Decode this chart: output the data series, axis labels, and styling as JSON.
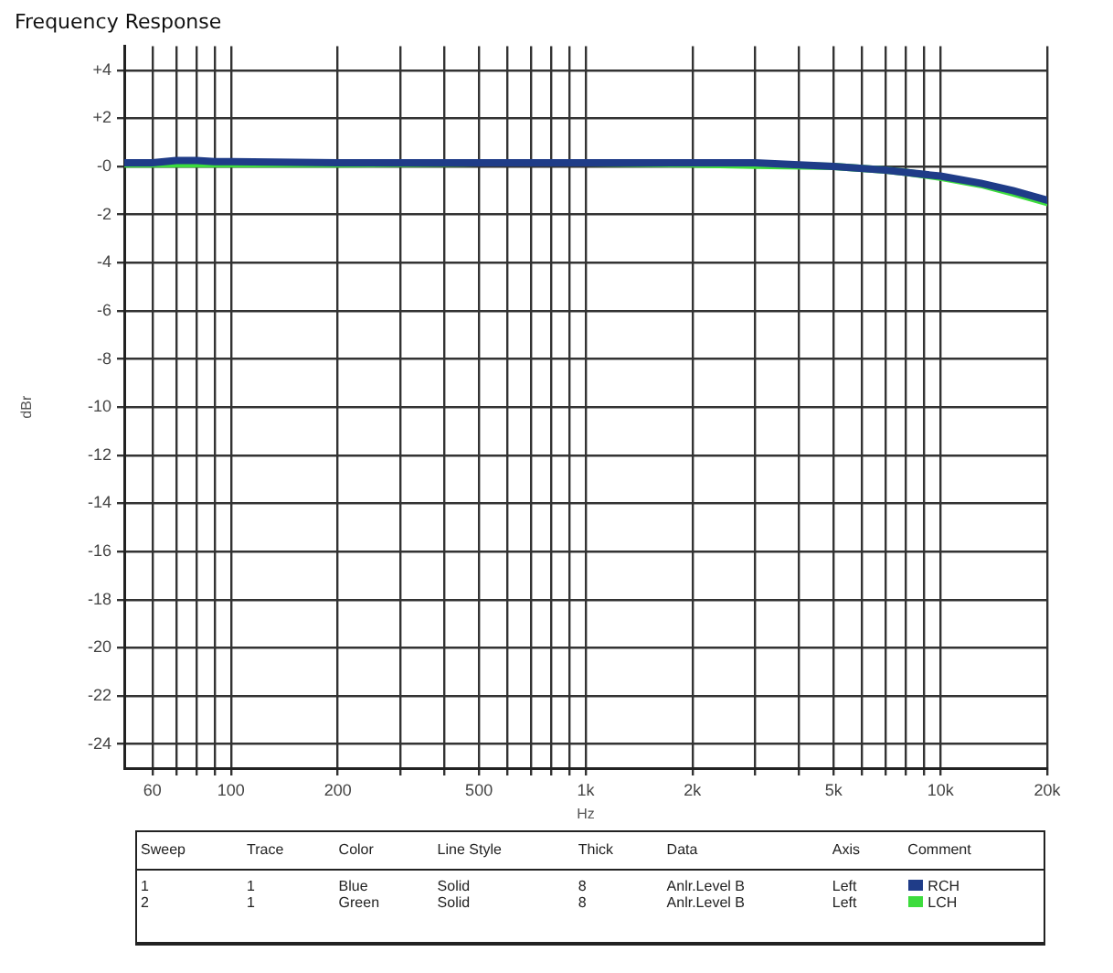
{
  "chart_data": {
    "type": "line",
    "title": "Frequency Response",
    "xlabel": "Hz",
    "ylabel": "dBr",
    "log": "x",
    "x": [
      50,
      60,
      70,
      80,
      90,
      100,
      200,
      500,
      1000,
      2000,
      3000,
      5000,
      7000,
      8000,
      10000,
      13000,
      16000,
      20000
    ],
    "series": [
      {
        "name": "RCH",
        "color": "#1f3c88",
        "values": [
          0.15,
          0.15,
          0.25,
          0.25,
          0.2,
          0.2,
          0.15,
          0.15,
          0.15,
          0.15,
          0.15,
          0,
          -0.15,
          -0.25,
          -0.4,
          -0.7,
          -1.0,
          -1.4
        ]
      },
      {
        "name": "LCH",
        "color": "#3ddc3d",
        "values": [
          0.1,
          0.1,
          0.1,
          0.1,
          0.1,
          0.1,
          0.1,
          0.15,
          0.15,
          0.1,
          0.05,
          0,
          -0.15,
          -0.25,
          -0.45,
          -0.75,
          -1.1,
          -1.5
        ]
      }
    ],
    "xlim": [
      50,
      20000
    ],
    "xticks": [
      60,
      {
        "value": 70,
        "label": null
      },
      {
        "value": 80,
        "label": null
      },
      {
        "value": 90,
        "label": null
      },
      100,
      200,
      {
        "value": 300,
        "label": null
      },
      {
        "value": 400,
        "label": null
      },
      500,
      {
        "value": 600,
        "label": null
      },
      {
        "value": 700,
        "label": null
      },
      {
        "value": 800,
        "label": null
      },
      {
        "value": 900,
        "label": null
      },
      {
        "value": 1000,
        "label": "1k"
      },
      {
        "value": 2000,
        "label": "2k"
      },
      {
        "value": 3000,
        "label": null
      },
      {
        "value": 4000,
        "label": null
      },
      {
        "value": 5000,
        "label": "5k"
      },
      {
        "value": 6000,
        "label": null
      },
      {
        "value": 7000,
        "label": null
      },
      {
        "value": 8000,
        "label": null
      },
      {
        "value": 9000,
        "label": null
      },
      {
        "value": 10000,
        "label": "10k"
      },
      {
        "value": 20000,
        "label": "20k"
      }
    ],
    "ylim": [
      -25,
      5
    ],
    "yticks": [
      {
        "value": -24,
        "label": "-24"
      },
      {
        "value": -22,
        "label": "-22"
      },
      {
        "value": -20,
        "label": "-20"
      },
      {
        "value": -18,
        "label": "-18"
      },
      {
        "value": -16,
        "label": "-16"
      },
      {
        "value": -14,
        "label": "-14"
      },
      {
        "value": -12,
        "label": "-12"
      },
      {
        "value": -10,
        "label": "-10"
      },
      {
        "value": -8,
        "label": "-8"
      },
      {
        "value": -6,
        "label": "-6"
      },
      {
        "value": -4,
        "label": "-4"
      },
      {
        "value": -2,
        "label": "-2"
      },
      {
        "value": 0,
        "label": "-0"
      },
      {
        "value": 2,
        "label": "+2"
      },
      {
        "value": 4,
        "label": "+4"
      }
    ],
    "grid": true,
    "legend": "bottom",
    "marker": "none",
    "line_style": "solid",
    "annotations": [
      "Sweep",
      "Trace",
      "Color",
      "Line Style",
      "Thick",
      "Data",
      "Axis",
      "Comment",
      "1",
      "1",
      "Blue",
      "Solid",
      "8",
      "Anlr.Level B",
      "Left",
      "2",
      "1",
      "Green",
      "Solid",
      "8",
      "Anlr.Level B",
      "Left"
    ]
  }
}
